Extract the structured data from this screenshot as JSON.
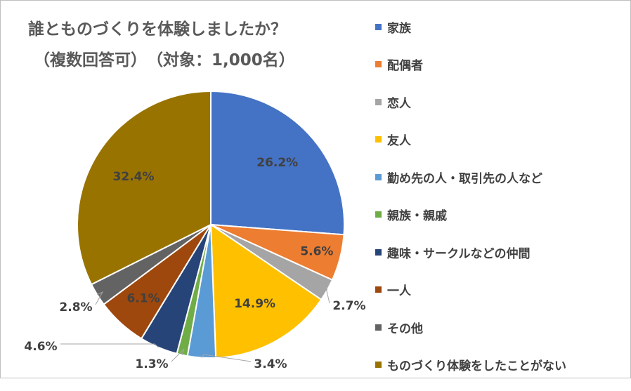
{
  "title": {
    "line1": "誰とものづくりを体験しましたか？",
    "line2": "（複数回答可）　（対象：1,000名）"
  },
  "chart_data": {
    "type": "pie",
    "title": "誰とものづくりを体験しましたか？（複数回答可）　（対象：1,000名）",
    "legend_position": "right",
    "labels": [
      "家族",
      "配偶者",
      "恋人",
      "友人",
      "勤め先の人・取引先の人など",
      "親族・親戚",
      "趣味・サークルなどの仲間",
      "一人",
      "その他",
      "ものづくり体験をしたことがない"
    ],
    "values": [
      26.2,
      5.6,
      2.7,
      14.9,
      3.4,
      1.3,
      4.6,
      6.1,
      2.8,
      32.4
    ],
    "data_labels": [
      "26.2%",
      "5.6%",
      "2.7%",
      "14.9%",
      "3.4%",
      "1.3%",
      "4.6%",
      "6.1%",
      "2.8%",
      "32.4%"
    ],
    "colors": [
      "#4472C4",
      "#ED7D31",
      "#A5A5A5",
      "#FFC000",
      "#5B9BD5",
      "#70AD47",
      "#264478",
      "#9E480E",
      "#636363",
      "#997300"
    ]
  }
}
